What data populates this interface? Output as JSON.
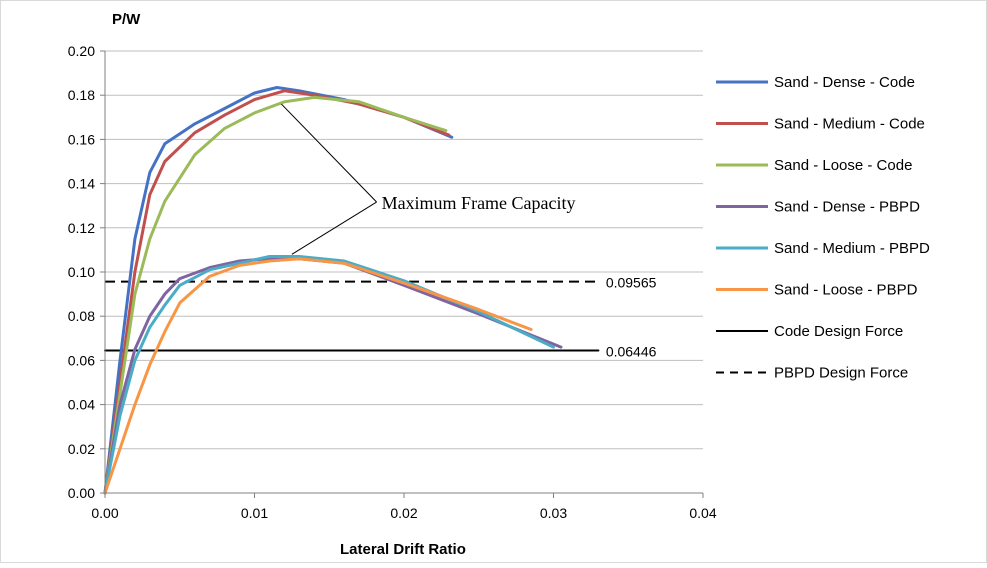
{
  "chart_data": {
    "type": "line",
    "ylabel": "P/W",
    "xlabel": "Lateral Drift Ratio",
    "xlim": [
      0,
      0.04
    ],
    "ylim": [
      0,
      0.2
    ],
    "x_ticks": [
      "0.00",
      "0.01",
      "0.02",
      "0.03",
      "0.04"
    ],
    "y_ticks": [
      "0.00",
      "0.02",
      "0.04",
      "0.06",
      "0.08",
      "0.10",
      "0.12",
      "0.14",
      "0.16",
      "0.18",
      "0.20"
    ],
    "grid": "horizontal",
    "legend_position": "right",
    "series": [
      {
        "name": "Sand - Dense - Code",
        "color": "#4472C4",
        "dash": "solid",
        "x": [
          0,
          0.001,
          0.002,
          0.003,
          0.004,
          0.006,
          0.008,
          0.01,
          0.0115,
          0.013,
          0.016,
          0.02,
          0.0232
        ],
        "y": [
          0,
          0.06,
          0.115,
          0.145,
          0.158,
          0.167,
          0.174,
          0.181,
          0.1835,
          0.182,
          0.178,
          0.17,
          0.161
        ]
      },
      {
        "name": "Sand - Medium - Code",
        "color": "#C0504D",
        "dash": "solid",
        "x": [
          0,
          0.001,
          0.002,
          0.003,
          0.004,
          0.006,
          0.008,
          0.01,
          0.012,
          0.014,
          0.017,
          0.02,
          0.023
        ],
        "y": [
          0,
          0.05,
          0.1,
          0.135,
          0.15,
          0.163,
          0.171,
          0.178,
          0.182,
          0.18,
          0.176,
          0.17,
          0.162
        ]
      },
      {
        "name": "Sand - Loose - Code",
        "color": "#9BBB59",
        "dash": "solid",
        "x": [
          0,
          0.001,
          0.002,
          0.003,
          0.004,
          0.006,
          0.008,
          0.01,
          0.012,
          0.014,
          0.017,
          0.02,
          0.0228
        ],
        "y": [
          0,
          0.045,
          0.09,
          0.115,
          0.132,
          0.153,
          0.165,
          0.172,
          0.177,
          0.179,
          0.177,
          0.17,
          0.164
        ]
      },
      {
        "name": "Sand - Dense - PBPD",
        "color": "#8064A2",
        "dash": "solid",
        "x": [
          0,
          0.001,
          0.002,
          0.003,
          0.004,
          0.005,
          0.007,
          0.009,
          0.011,
          0.013,
          0.016,
          0.02,
          0.025,
          0.0305
        ],
        "y": [
          0,
          0.04,
          0.065,
          0.08,
          0.09,
          0.097,
          0.102,
          0.105,
          0.106,
          0.106,
          0.104,
          0.094,
          0.081,
          0.066
        ]
      },
      {
        "name": "Sand - Medium - PBPD",
        "color": "#4BACC6",
        "dash": "solid",
        "x": [
          0,
          0.001,
          0.002,
          0.003,
          0.004,
          0.005,
          0.007,
          0.009,
          0.011,
          0.013,
          0.016,
          0.02,
          0.025,
          0.03
        ],
        "y": [
          0,
          0.035,
          0.06,
          0.075,
          0.085,
          0.094,
          0.101,
          0.104,
          0.107,
          0.107,
          0.105,
          0.096,
          0.082,
          0.066
        ]
      },
      {
        "name": "Sand - Loose - PBPD",
        "color": "#F79646",
        "dash": "solid",
        "x": [
          0,
          0.001,
          0.002,
          0.003,
          0.004,
          0.005,
          0.007,
          0.009,
          0.011,
          0.013,
          0.016,
          0.02,
          0.025,
          0.0285
        ],
        "y": [
          0,
          0.02,
          0.04,
          0.058,
          0.073,
          0.086,
          0.098,
          0.103,
          0.105,
          0.106,
          0.104,
          0.095,
          0.083,
          0.074
        ]
      },
      {
        "name": "Code Design Force",
        "color": "#000000",
        "dash": "solid",
        "x": [
          0,
          0.033
        ],
        "y": [
          0.06446,
          0.06446
        ]
      },
      {
        "name": "PBPD Design Force",
        "color": "#000000",
        "dash": "dashed",
        "x": [
          0,
          0.033
        ],
        "y": [
          0.09565,
          0.09565
        ]
      }
    ],
    "annotations": [
      {
        "text": "Maximum Frame Capacity",
        "x": 0.0185,
        "y": 0.1285,
        "arrows_to": [
          {
            "x": 0.0118,
            "y": 0.176
          },
          {
            "x": 0.0125,
            "y": 0.108
          }
        ]
      },
      {
        "text": "0.09565",
        "x": 0.0335,
        "y": 0.0957
      },
      {
        "text": "0.06446",
        "x": 0.0335,
        "y": 0.0645
      }
    ]
  }
}
